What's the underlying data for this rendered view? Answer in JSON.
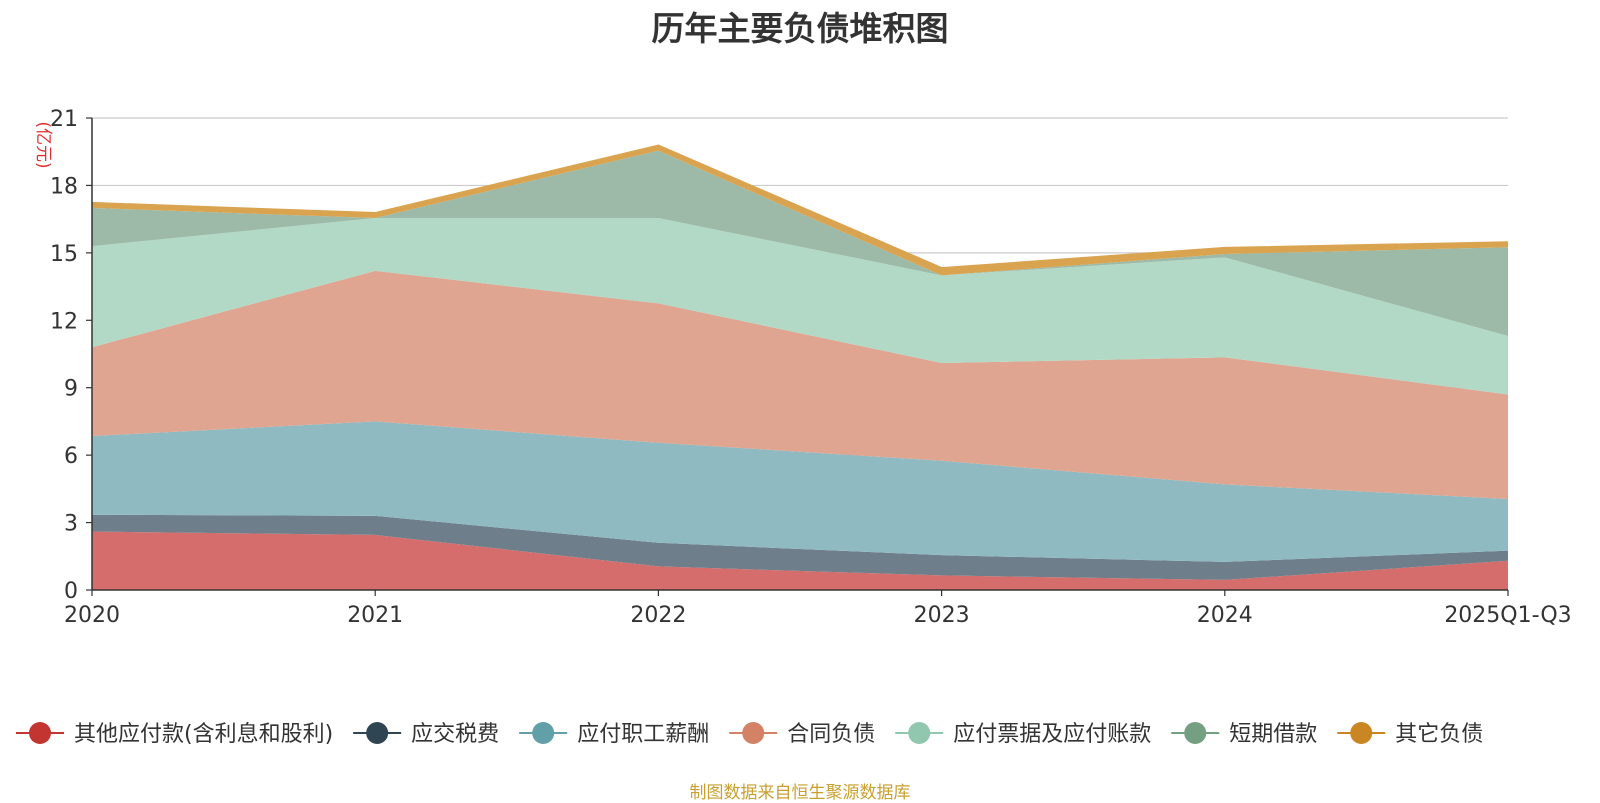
{
  "chart_data": {
    "type": "area",
    "stacked": true,
    "title": "历年主要负债堆积图",
    "ylabel": "(亿元)",
    "xlabel": "",
    "categories": [
      "2020",
      "2021",
      "2022",
      "2023",
      "2024",
      "2025Q1-Q3"
    ],
    "yticks": [
      0,
      3,
      6,
      9,
      12,
      15,
      18,
      21
    ],
    "ylim": [
      0,
      21
    ],
    "grid": true,
    "legend_position": "bottom",
    "series": [
      {
        "name": "其他应付款(含利息和股利)",
        "color": "#d46d6b",
        "line_color": "#c23531",
        "values": [
          2.6,
          2.45,
          1.05,
          0.65,
          0.45,
          1.3
        ]
      },
      {
        "name": "应交税费",
        "color": "#6e7e8a",
        "line_color": "#2f4554",
        "values": [
          0.75,
          0.85,
          1.05,
          0.9,
          0.8,
          0.45
        ]
      },
      {
        "name": "应付职工薪酬",
        "color": "#8fbac2",
        "line_color": "#61a0a8",
        "values": [
          3.5,
          4.2,
          4.45,
          4.2,
          3.45,
          2.3
        ]
      },
      {
        "name": "合同负债",
        "color": "#dfa590",
        "line_color": "#d48265",
        "values": [
          3.95,
          6.7,
          6.2,
          4.35,
          5.65,
          4.65
        ]
      },
      {
        "name": "应付票据及应付账款",
        "color": "#b1d9c6",
        "line_color": "#91c7ae",
        "values": [
          4.5,
          2.35,
          3.8,
          3.9,
          4.45,
          2.6
        ]
      },
      {
        "name": "短期借款",
        "color": "#9cbaa7",
        "line_color": "#749f83",
        "values": [
          1.7,
          0.0,
          3.0,
          0.0,
          0.15,
          3.95
        ]
      },
      {
        "name": "其它负债",
        "color": "#d9a34f",
        "line_color": "#ca8622",
        "values": [
          0.2,
          0.2,
          0.2,
          0.3,
          0.25,
          0.2
        ]
      }
    ]
  },
  "source_note": "制图数据来自恒生聚源数据库"
}
